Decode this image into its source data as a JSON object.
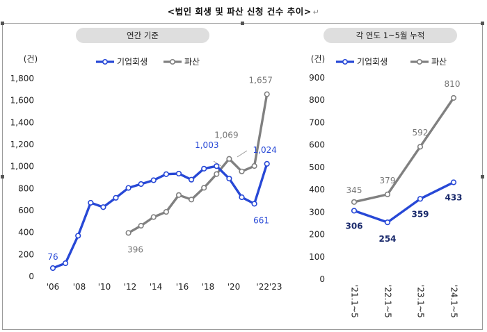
{
  "title": "<법인 회생 및 파산 신청 건수 추이>",
  "return_mark": "↵",
  "colors": {
    "rehab": "#2748d6",
    "bankrupt": "#808080",
    "rehab_label": "#2748d6",
    "panel_pill": "#dedede"
  },
  "chart_data": [
    {
      "type": "line",
      "panel_label": "연간 기준",
      "unit_label": "(건)",
      "ylim": [
        0,
        1800
      ],
      "yticks": [
        "0",
        "200",
        "400",
        "600",
        "800",
        "1,000",
        "1,200",
        "1,400",
        "1,600",
        "1,800"
      ],
      "xtick_labels": [
        "'06",
        "'08",
        "'10",
        "'12",
        "'14",
        "'16",
        "'18",
        "'20",
        "'22'23"
      ],
      "legend": [
        "기업회생",
        "파산"
      ],
      "grid": false,
      "series": [
        {
          "name": "기업회생",
          "x": [
            2006,
            2007,
            2008,
            2009,
            2010,
            2011,
            2012,
            2013,
            2014,
            2015,
            2016,
            2017,
            2018,
            2019,
            2020,
            2021,
            2022,
            2023
          ],
          "values": [
            76,
            120,
            370,
            670,
            630,
            715,
            805,
            840,
            875,
            930,
            935,
            880,
            980,
            1003,
            890,
            720,
            661,
            1024
          ]
        },
        {
          "name": "파산",
          "x": [
            2012,
            2013,
            2014,
            2015,
            2016,
            2017,
            2018,
            2019,
            2020,
            2021,
            2022,
            2023
          ],
          "values": [
            396,
            461,
            540,
            587,
            740,
            699,
            806,
            931,
            1069,
            955,
            1004,
            1657
          ]
        }
      ],
      "data_labels": [
        {
          "series": "기업회생",
          "x": 2006,
          "text": "76"
        },
        {
          "series": "기업회생",
          "x": 2019,
          "text": "1,003"
        },
        {
          "series": "기업회생",
          "x": 2022,
          "text": "661"
        },
        {
          "series": "기업회생",
          "x": 2023,
          "text": "1,024"
        },
        {
          "series": "파산",
          "x": 2012,
          "text": "396"
        },
        {
          "series": "파산",
          "x": 2020,
          "text": "1,069"
        },
        {
          "series": "파산",
          "x": 2023,
          "text": "1,657"
        }
      ]
    },
    {
      "type": "line",
      "panel_label": "각 연도 1~5월 누적",
      "unit_label": "(건)",
      "ylim": [
        0,
        900
      ],
      "yticks": [
        "0",
        "100",
        "200",
        "300",
        "400",
        "500",
        "600",
        "700",
        "800",
        "900"
      ],
      "categories": [
        "'21.1~5",
        "'22.1~5",
        "'23.1~5",
        "'24.1~5"
      ],
      "legend": [
        "기업회생",
        "파산"
      ],
      "grid": false,
      "series": [
        {
          "name": "기업회생",
          "values": [
            306,
            254,
            359,
            433
          ]
        },
        {
          "name": "파산",
          "values": [
            345,
            379,
            592,
            810
          ]
        }
      ],
      "data_labels": {
        "기업회생": [
          "306",
          "254",
          "359",
          "433"
        ],
        "파산": [
          "345",
          "379",
          "592",
          "810"
        ]
      }
    }
  ]
}
